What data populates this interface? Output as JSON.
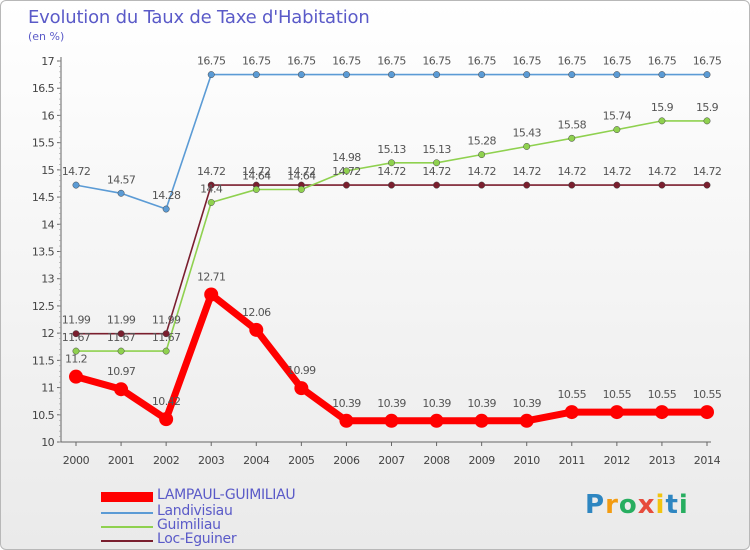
{
  "chart_data": {
    "type": "line",
    "title": "Evolution du Taux de Taxe d'Habitation",
    "subtitle": "(en %)",
    "x": [
      "2000",
      "2001",
      "2002",
      "2003",
      "2004",
      "2005",
      "2006",
      "2007",
      "2008",
      "2009",
      "2010",
      "2011",
      "2012",
      "2013",
      "2014"
    ],
    "ylim": [
      10,
      17
    ],
    "yticks": [
      "10",
      "10.5",
      "11",
      "11.5",
      "12",
      "12.5",
      "13",
      "13.5",
      "14",
      "14.5",
      "15",
      "15.5",
      "16",
      "16.5",
      "17"
    ],
    "grid": false,
    "legend_position": "bottom-left",
    "series": [
      {
        "name": "LAMPAUL-GUIMILIAU",
        "color": "#ff0000",
        "values": [
          11.2,
          10.97,
          10.42,
          12.71,
          12.06,
          10.99,
          10.39,
          10.39,
          10.39,
          10.39,
          10.39,
          10.55,
          10.55,
          10.55,
          10.55
        ],
        "labels": [
          "11.2",
          "10.97",
          "10.42",
          "12.71",
          "12.06",
          "10.99",
          "10.39",
          "10.39",
          "10.39",
          "10.39",
          "10.39",
          "10.55",
          "10.55",
          "10.55",
          "10.55"
        ]
      },
      {
        "name": "Landivisiau",
        "color": "#5b9bd5",
        "values": [
          14.72,
          14.57,
          14.28,
          16.75,
          16.75,
          16.75,
          16.75,
          16.75,
          16.75,
          16.75,
          16.75,
          16.75,
          16.75,
          16.75,
          16.75
        ],
        "labels": [
          "14.72",
          "14.57",
          "14.28",
          "16.75",
          "16.75",
          "16.75",
          "16.75",
          "16.75",
          "16.75",
          "16.75",
          "16.75",
          "16.75",
          "16.75",
          "16.75",
          "16.75"
        ]
      },
      {
        "name": "Guimiliau",
        "color": "#8fd14f",
        "values": [
          11.67,
          11.67,
          11.67,
          14.4,
          14.64,
          14.64,
          14.98,
          15.13,
          15.13,
          15.28,
          15.43,
          15.58,
          15.74,
          15.9,
          15.9
        ],
        "labels": [
          "11.67",
          "11.67",
          "11.67",
          "14.4",
          "14.64",
          "14.64",
          "14.98",
          "15.13",
          "15.13",
          "15.28",
          "15.43",
          "15.58",
          "15.74",
          "15.9",
          "15.9"
        ]
      },
      {
        "name": "Loc-Eguiner",
        "color": "#7a1e2e",
        "values": [
          11.99,
          11.99,
          11.99,
          14.72,
          14.72,
          14.72,
          14.72,
          14.72,
          14.72,
          14.72,
          14.72,
          14.72,
          14.72,
          14.72,
          14.72
        ],
        "labels": [
          "11.99",
          "11.99",
          "11.99",
          "14.72",
          "14.72",
          "14.72",
          "14.72",
          "14.72",
          "14.72",
          "14.72",
          "14.72",
          "14.72",
          "14.72",
          "14.72",
          "14.72"
        ]
      }
    ]
  },
  "legend": [
    {
      "label": "LAMPAUL-GUIMILIAU",
      "color": "#ff0000"
    },
    {
      "label": "Landivisiau",
      "color": "#5b9bd5"
    },
    {
      "label": "Guimiliau",
      "color": "#8fd14f"
    },
    {
      "label": "Loc-Eguiner",
      "color": "#7a1e2e"
    }
  ],
  "logo": {
    "text": "Proxiti",
    "letters": [
      "P",
      "r",
      "o",
      "x",
      "i",
      "t",
      "i"
    ],
    "colors": [
      "#2e86c1",
      "#f39c12",
      "#27ae60",
      "#e74c3c",
      "#f1c40f",
      "#2e86c1",
      "#27ae60"
    ]
  },
  "style": {
    "title_color": "#5a5ac8",
    "label_color": "#555555",
    "axis_color": "#666666"
  }
}
